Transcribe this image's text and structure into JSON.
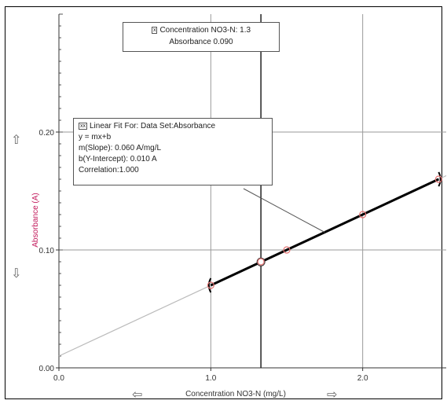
{
  "chart_data": {
    "type": "scatter",
    "xlabel": "Concentration NO3-N (mg/L)",
    "ylabel": "Absorbance (A)",
    "xlim": [
      0,
      2.55
    ],
    "ylim": [
      0,
      0.3
    ],
    "x_ticks": [
      "0.0",
      "1.0",
      "2.0"
    ],
    "y_ticks": [
      "0.00",
      "0.10",
      "0.20"
    ],
    "x_tick_values": [
      0,
      1,
      2
    ],
    "y_tick_values": [
      0,
      0.1,
      0.2
    ],
    "grid": true,
    "series": [
      {
        "name": "Absorbance",
        "x": [
          1.0,
          1.33,
          1.5,
          2.0,
          2.5
        ],
        "y": [
          0.07,
          0.09,
          0.1,
          0.13,
          0.16
        ]
      }
    ],
    "fit_line": {
      "slope": 0.06,
      "intercept": 0.01,
      "x_range": [
        1.0,
        2.5
      ]
    },
    "cursor_x": 1.33,
    "colors": {
      "data_point": "#e57373",
      "fit_bold": "#000000",
      "fit_thin": "#bbbbbb",
      "y_label": "#c2185b"
    }
  },
  "examine_box": {
    "line1": "Concentration NO3-N: 1.3",
    "line2": "Absorbance 0.090"
  },
  "fit_box": {
    "title": "Linear Fit For:  Data Set:Absorbance",
    "eq": "y = mx+b",
    "slope": "m(Slope): 0.060 A/mg/L",
    "intercept": "b(Y-Intercept): 0.010 A",
    "correlation": "Correlation:1.000"
  },
  "arrows": {
    "up": "up-arrow-icon",
    "down": "down-arrow-icon",
    "left": "left-arrow-icon",
    "right": "right-arrow-icon"
  }
}
